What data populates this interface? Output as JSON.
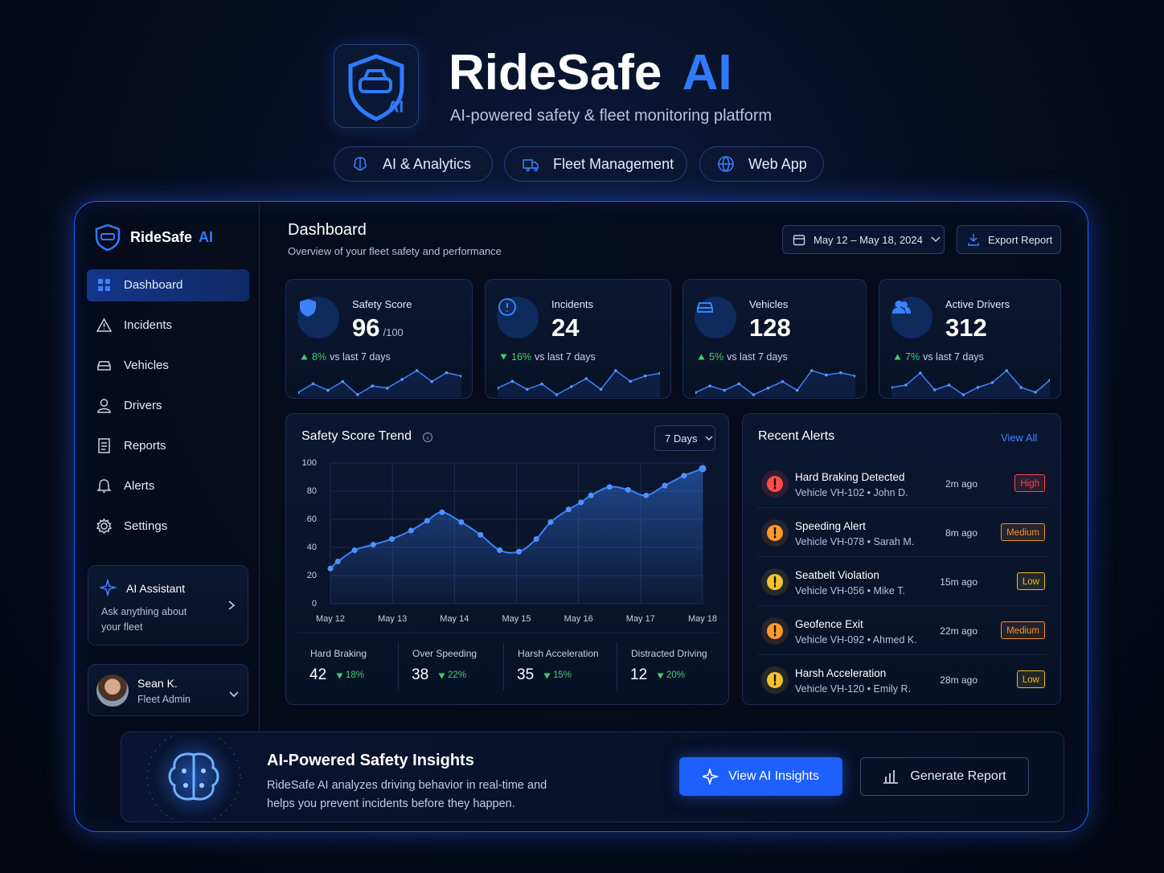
{
  "header": {
    "title": "RideSafe",
    "title_accent": "AI",
    "subtitle": "AI-powered safety & fleet monitoring platform",
    "tags": [
      "AI & Analytics",
      "Fleet Management",
      "Web App"
    ]
  },
  "sidebar": {
    "brand": "RideSafe",
    "brand_accent": "AI",
    "nav": [
      "Dashboard",
      "Incidents",
      "Vehicles",
      "Drivers",
      "Reports",
      "Alerts",
      "Settings"
    ],
    "active_index": 0,
    "assistant": {
      "title": "AI Assistant",
      "text": "Ask anything about your fleet"
    },
    "user": {
      "name": "Sean K.",
      "role": "Fleet Admin"
    }
  },
  "dashboard": {
    "title": "Dashboard",
    "subtitle": "Overview of your fleet safety and performance",
    "date_range": "May 12 – May 18, 2024",
    "export": "Export Report"
  },
  "kpis": [
    {
      "label": "Safety Score",
      "value": 96,
      "unit": "/100",
      "change": "8%",
      "direction": "up",
      "note": "vs last 7 days",
      "spark": [
        40,
        48,
        42,
        50,
        38,
        46,
        44,
        52,
        60,
        50,
        58,
        55
      ]
    },
    {
      "label": "Incidents",
      "value": 24,
      "change": "16%",
      "direction": "down",
      "note": "vs last 7 days",
      "spark": [
        45,
        50,
        44,
        48,
        40,
        46,
        52,
        44,
        58,
        50,
        54,
        56
      ]
    },
    {
      "label": "Vehicles",
      "value": 128,
      "change": "5%",
      "direction": "up",
      "note": "vs last 7 days",
      "spark": [
        40,
        46,
        42,
        48,
        38,
        44,
        50,
        42,
        60,
        56,
        58,
        55
      ]
    },
    {
      "label": "Active Drivers",
      "value": 312,
      "change": "7%",
      "direction": "up",
      "note": "vs last 7 days",
      "spark": [
        48,
        50,
        60,
        46,
        50,
        42,
        48,
        52,
        62,
        48,
        44,
        54
      ]
    }
  ],
  "chart_data": {
    "type": "line",
    "title": "Safety Score Trend",
    "period": "7 Days",
    "x": [
      0,
      0.12,
      0.39,
      0.69,
      0.99,
      1.3,
      1.56,
      1.8,
      2.11,
      2.42,
      2.73,
      3.04,
      3.32,
      3.55,
      3.84,
      4.04,
      4.2,
      4.5,
      4.8,
      5.09,
      5.39,
      5.7,
      6
    ],
    "values": [
      25,
      30,
      38,
      42,
      46,
      52,
      59,
      65,
      58,
      49,
      38,
      37,
      46,
      58,
      67,
      72,
      77,
      83,
      81,
      77,
      84,
      91,
      96
    ],
    "color": "#3b82ff",
    "xlim": [
      0,
      6
    ],
    "xticks": [
      {
        "value": 0,
        "label": "May 12"
      },
      {
        "value": 1,
        "label": "May 13"
      },
      {
        "value": 2,
        "label": "May 14"
      },
      {
        "value": 3,
        "label": "May 15"
      },
      {
        "value": 4,
        "label": "May 16"
      },
      {
        "value": 5,
        "label": "May 17"
      },
      {
        "value": 6,
        "label": "May 18"
      }
    ],
    "ylim": [
      0,
      100
    ],
    "yticks": [
      0,
      20,
      40,
      60,
      80,
      100
    ],
    "grid": true
  },
  "trend_stats": [
    {
      "label": "Hard Braking",
      "value": 42,
      "change": "18%",
      "direction": "down"
    },
    {
      "label": "Over Speeding",
      "value": 38,
      "change": "22%",
      "direction": "down"
    },
    {
      "label": "Harsh Acceleration",
      "value": 35,
      "change": "15%",
      "direction": "down"
    },
    {
      "label": "Distracted Driving",
      "value": 12,
      "change": "20%",
      "direction": "down"
    }
  ],
  "alerts": {
    "title": "Recent Alerts",
    "view_all": "View All",
    "items": [
      {
        "title": "Hard Braking Detected",
        "detail": "Vehicle VH-102 • John D.",
        "time": "2m ago",
        "severity": "High",
        "color": "#ff4d4d"
      },
      {
        "title": "Speeding Alert",
        "detail": "Vehicle VH-078 • Sarah M.",
        "time": "8m ago",
        "severity": "Medium",
        "color": "#ff9a2e"
      },
      {
        "title": "Seatbelt Violation",
        "detail": "Vehicle VH-056 • Mike T.",
        "time": "15m ago",
        "severity": "Low",
        "color": "#f2c230"
      },
      {
        "title": "Geofence Exit",
        "detail": "Vehicle VH-092 • Ahmed K.",
        "time": "22m ago",
        "severity": "Medium",
        "color": "#ff9a2e"
      },
      {
        "title": "Harsh Acceleration",
        "detail": "Vehicle VH-120 • Emily R.",
        "time": "28m ago",
        "severity": "Low",
        "color": "#f2c230"
      }
    ]
  },
  "banner": {
    "title": "AI-Powered Safety Insights",
    "text": "RideSafe AI analyzes driving behavior in real-time and helps you prevent incidents before they happen.",
    "primary": "View AI Insights",
    "secondary": "Generate Report"
  }
}
